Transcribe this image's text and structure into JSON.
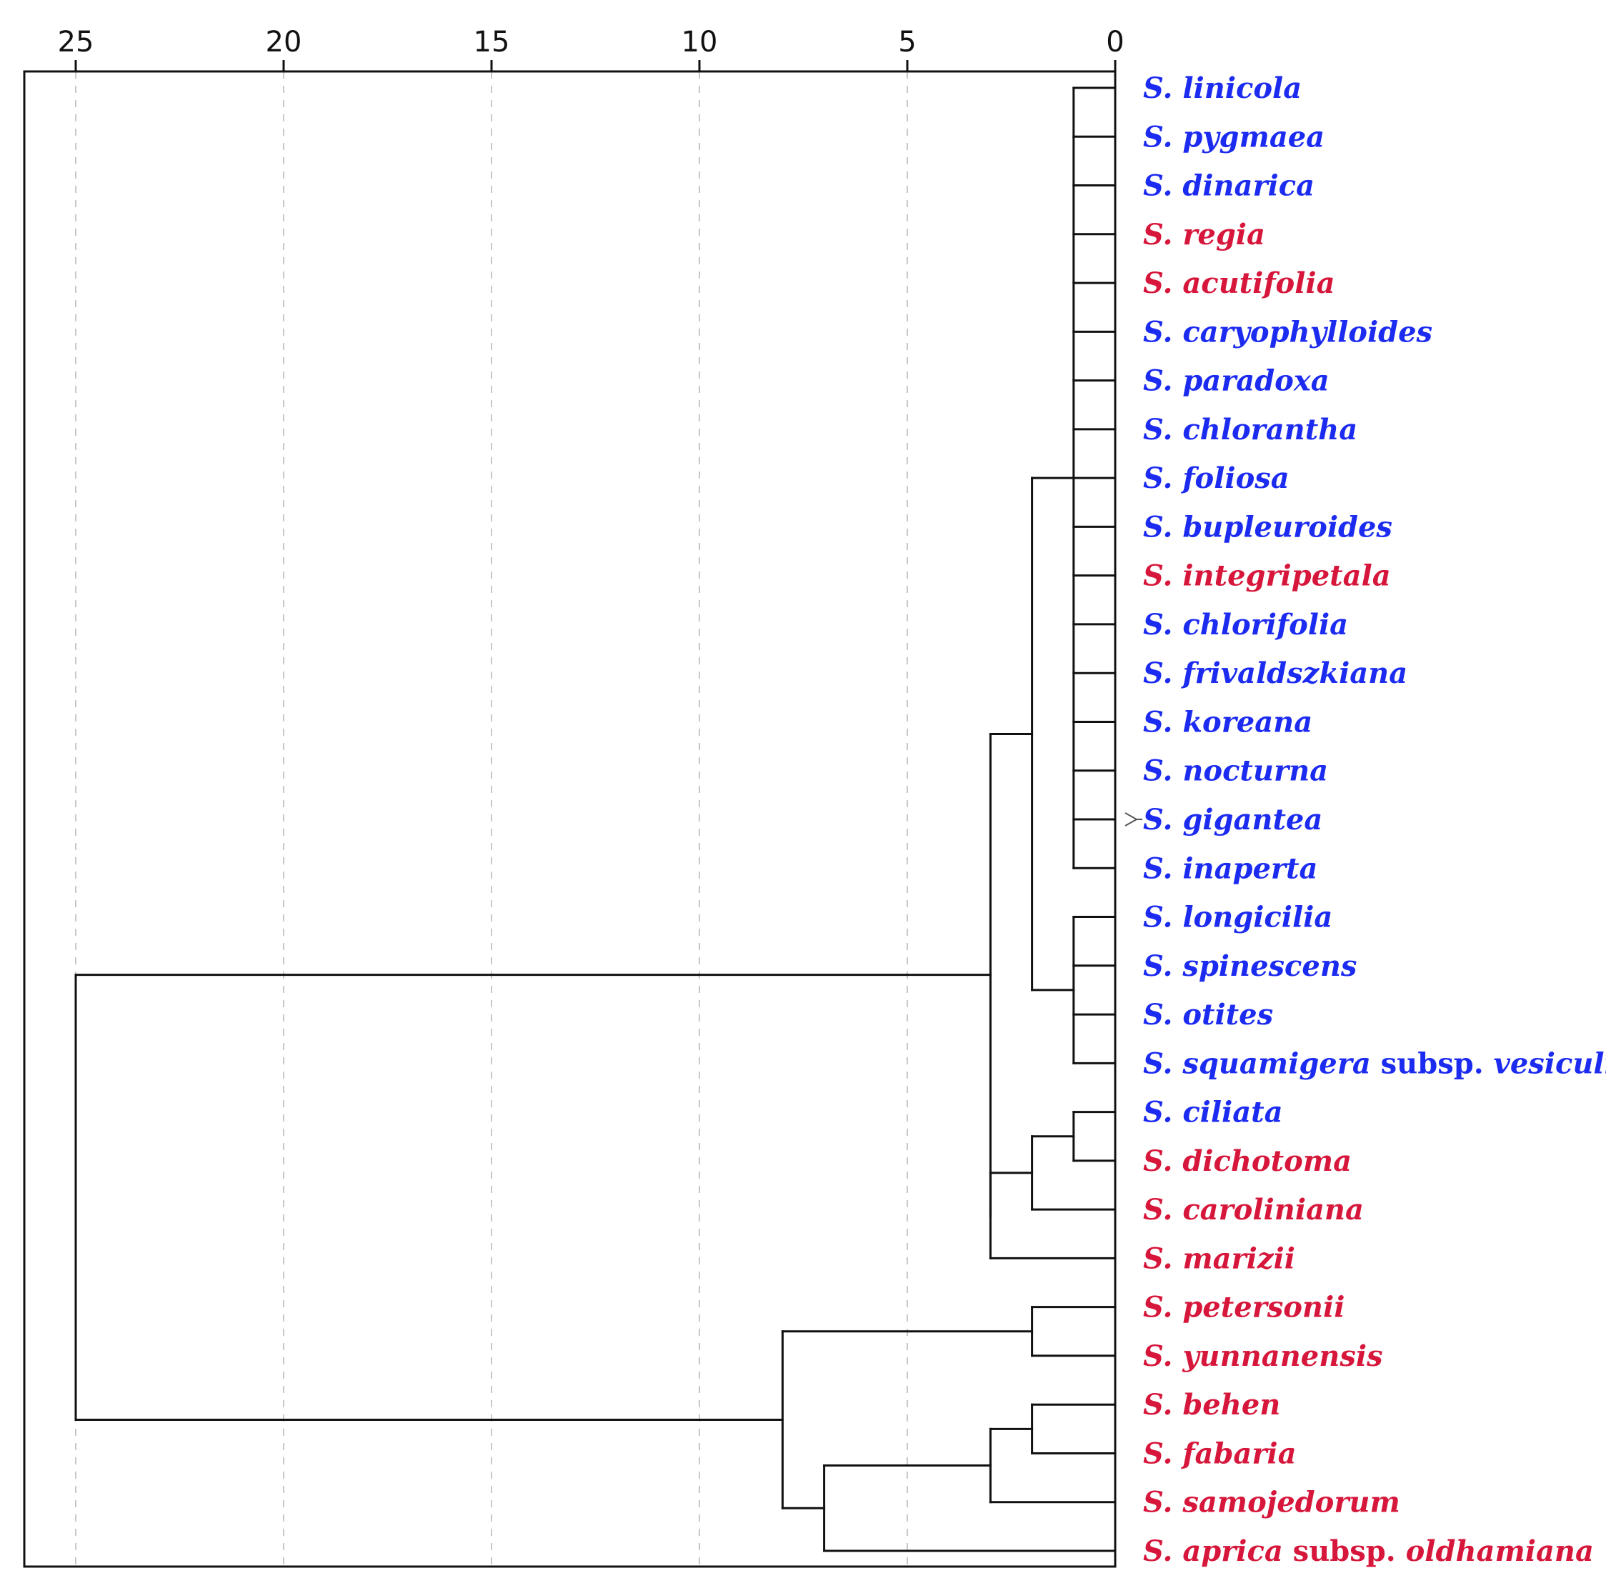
{
  "chart_data": {
    "type": "dendrogram",
    "title": "",
    "xlabel": "",
    "ylabel": "",
    "orientation": "right-to-left",
    "xlim": [
      0,
      25
    ],
    "xticks": [
      25,
      20,
      15,
      10,
      5,
      0
    ],
    "grid": true,
    "colors": {
      "blue": "#1c2bf0",
      "red": "#d6173b",
      "line": "#111111"
    },
    "leaves": [
      {
        "parts": [
          {
            "t": "S. linicola",
            "i": true
          }
        ],
        "color": "blue"
      },
      {
        "parts": [
          {
            "t": "S. pygmaea",
            "i": true
          }
        ],
        "color": "blue"
      },
      {
        "parts": [
          {
            "t": "S. dinarica",
            "i": true
          }
        ],
        "color": "blue"
      },
      {
        "parts": [
          {
            "t": "S. regia",
            "i": true
          }
        ],
        "color": "red"
      },
      {
        "parts": [
          {
            "t": "S. acutifolia",
            "i": true
          }
        ],
        "color": "red"
      },
      {
        "parts": [
          {
            "t": "S. caryophylloides",
            "i": true
          }
        ],
        "color": "blue"
      },
      {
        "parts": [
          {
            "t": "S. paradoxa",
            "i": true
          }
        ],
        "color": "blue"
      },
      {
        "parts": [
          {
            "t": "S. chlorantha",
            "i": true
          }
        ],
        "color": "blue"
      },
      {
        "parts": [
          {
            "t": "S. foliosa",
            "i": true
          }
        ],
        "color": "blue"
      },
      {
        "parts": [
          {
            "t": "S. bupleuroides",
            "i": true
          }
        ],
        "color": "blue"
      },
      {
        "parts": [
          {
            "t": "S. integripetala",
            "i": true
          }
        ],
        "color": "red"
      },
      {
        "parts": [
          {
            "t": "S. chlorifolia",
            "i": true
          }
        ],
        "color": "blue"
      },
      {
        "parts": [
          {
            "t": "S. frivaldszkiana",
            "i": true
          }
        ],
        "color": "blue"
      },
      {
        "parts": [
          {
            "t": "S. koreana",
            "i": true
          }
        ],
        "color": "blue"
      },
      {
        "parts": [
          {
            "t": "S. nocturna",
            "i": true
          }
        ],
        "color": "blue"
      },
      {
        "parts": [
          {
            "t": "S. gigantea",
            "i": true
          }
        ],
        "color": "blue"
      },
      {
        "parts": [
          {
            "t": "S. inaperta",
            "i": true
          }
        ],
        "color": "blue"
      },
      {
        "parts": [
          {
            "t": "S. longicilia",
            "i": true
          }
        ],
        "color": "blue"
      },
      {
        "parts": [
          {
            "t": "S. spinescens",
            "i": true
          }
        ],
        "color": "blue"
      },
      {
        "parts": [
          {
            "t": "S. otites",
            "i": true
          }
        ],
        "color": "blue"
      },
      {
        "parts": [
          {
            "t": "S. squamigera",
            "i": true
          },
          {
            "t": " subsp. ",
            "i": false
          },
          {
            "t": "vesiculifera",
            "i": true
          }
        ],
        "color": "blue"
      },
      {
        "parts": [
          {
            "t": "S. ciliata",
            "i": true
          }
        ],
        "color": "blue"
      },
      {
        "parts": [
          {
            "t": "S. dichotoma",
            "i": true
          }
        ],
        "color": "red"
      },
      {
        "parts": [
          {
            "t": "S. caroliniana",
            "i": true
          }
        ],
        "color": "red"
      },
      {
        "parts": [
          {
            "t": "S. marizii",
            "i": true
          }
        ],
        "color": "red"
      },
      {
        "parts": [
          {
            "t": "S. petersonii",
            "i": true
          }
        ],
        "color": "red"
      },
      {
        "parts": [
          {
            "t": "S. yunnanensis",
            "i": true
          }
        ],
        "color": "red"
      },
      {
        "parts": [
          {
            "t": "S. behen",
            "i": true
          }
        ],
        "color": "red"
      },
      {
        "parts": [
          {
            "t": "S. fabaria",
            "i": true
          }
        ],
        "color": "red"
      },
      {
        "parts": [
          {
            "t": "S. samojedorum",
            "i": true
          }
        ],
        "color": "red"
      },
      {
        "parts": [
          {
            "t": "S. aprica",
            "i": true
          },
          {
            "t": " subsp. ",
            "i": false
          },
          {
            "t": "oldhamiana",
            "i": true
          }
        ],
        "color": "red"
      }
    ],
    "merges": [
      {
        "id": "A",
        "height": 1.0,
        "children": [
          "L0",
          "L1",
          "L2",
          "L3",
          "L4",
          "L5",
          "L6",
          "L7",
          "L8",
          "L9",
          "L10",
          "L11",
          "L12",
          "L13",
          "L14",
          "L15",
          "L16"
        ]
      },
      {
        "id": "B",
        "height": 1.0,
        "children": [
          "L17",
          "L18",
          "L19",
          "L20"
        ]
      },
      {
        "id": "C",
        "height": 2.0,
        "children": [
          "A",
          "B"
        ]
      },
      {
        "id": "D",
        "height": 1.0,
        "children": [
          "L21",
          "L22"
        ]
      },
      {
        "id": "E",
        "height": 2.0,
        "children": [
          "D",
          "L23"
        ]
      },
      {
        "id": "F",
        "height": 3.0,
        "children": [
          "E",
          "L24"
        ]
      },
      {
        "id": "G",
        "height": 3.0,
        "children": [
          "C",
          "F"
        ]
      },
      {
        "id": "H",
        "height": 2.0,
        "children": [
          "L25",
          "L26"
        ]
      },
      {
        "id": "I",
        "height": 2.0,
        "children": [
          "L27",
          "L28"
        ]
      },
      {
        "id": "J",
        "height": 3.0,
        "children": [
          "I",
          "L29"
        ]
      },
      {
        "id": "K",
        "height": 7.0,
        "children": [
          "J",
          "L30"
        ]
      },
      {
        "id": "M",
        "height": 8.0,
        "children": [
          "H",
          "K"
        ]
      },
      {
        "id": "R",
        "height": 25.0,
        "children": [
          "G",
          "M"
        ]
      }
    ],
    "marked_leaf": "S. gigantea"
  }
}
